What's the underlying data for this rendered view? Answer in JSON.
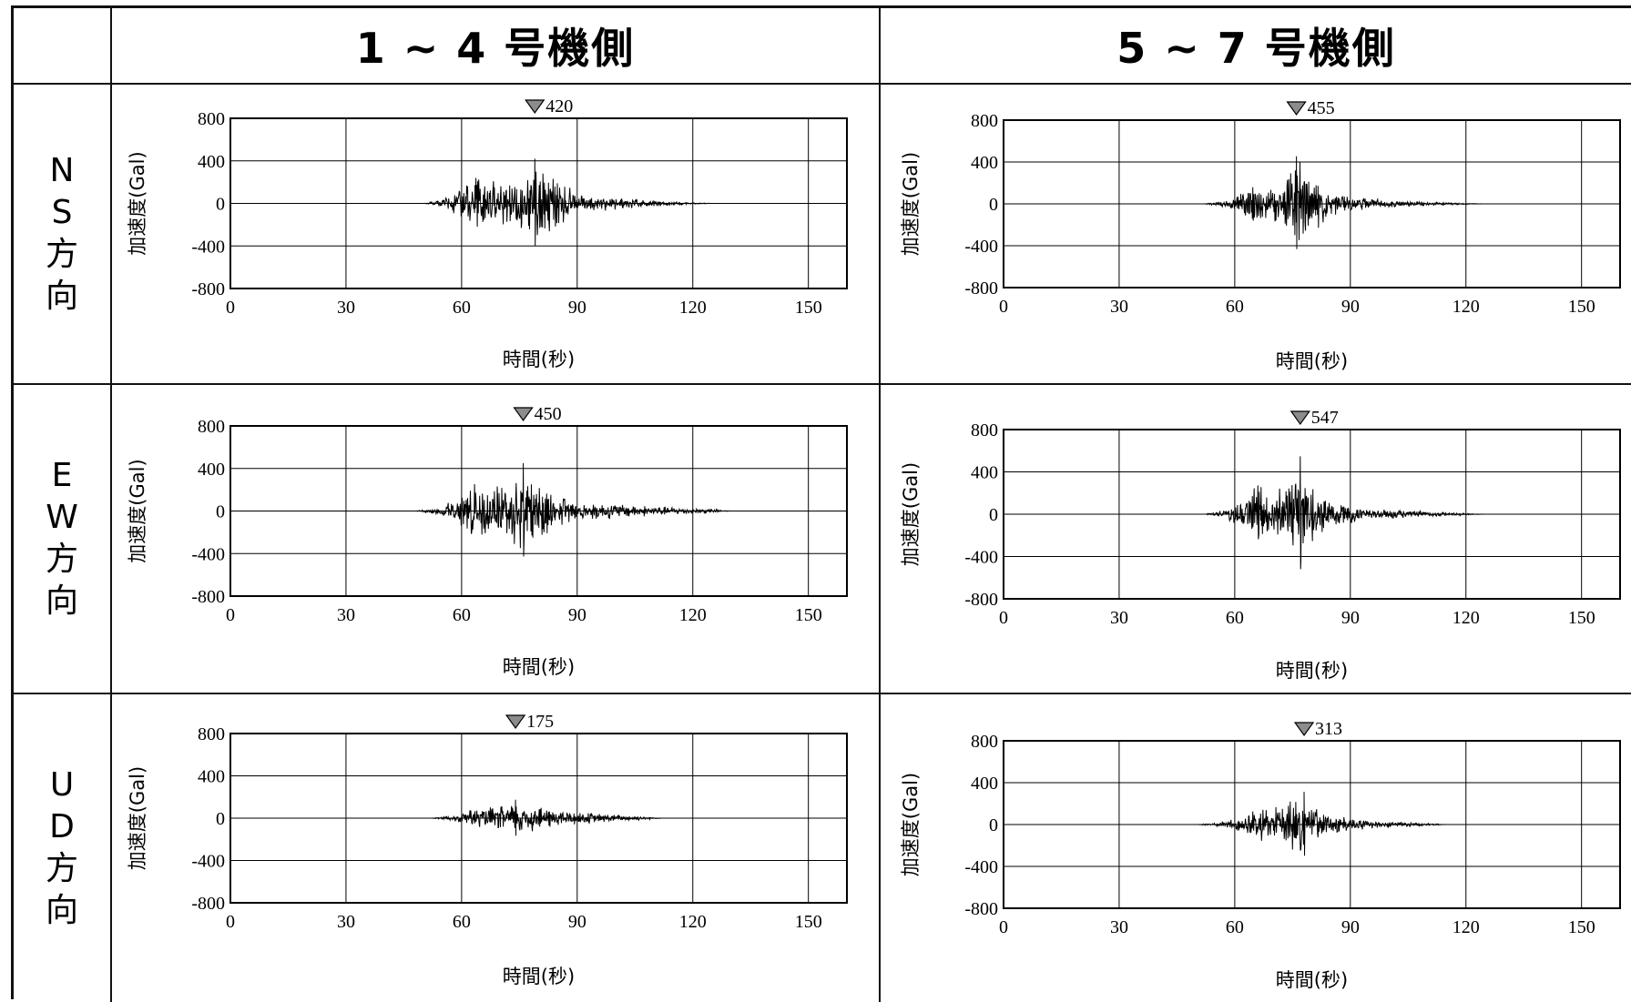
{
  "header": {
    "columns": [
      "1 ~ 4 号機側",
      "5 ~ 7 号機側"
    ]
  },
  "rows": [
    {
      "label_chars": [
        "N",
        "S",
        "方",
        "向"
      ]
    },
    {
      "label_chars": [
        "E",
        "W",
        "方",
        "向"
      ]
    },
    {
      "label_chars": [
        "U",
        "D",
        "方",
        "向"
      ]
    }
  ],
  "colors": {
    "trace": "#000000",
    "grid": "#000000",
    "marker": "#8c8c8c"
  },
  "chart_data": [
    {
      "type": "line",
      "row": "NS",
      "column": "1 ~ 4 号機側",
      "xlabel": "時間(秒)",
      "ylabel": "加速度(Gal)",
      "xlim": [
        0,
        160
      ],
      "ylim": [
        -800,
        800
      ],
      "xticks": [
        0,
        30,
        60,
        90,
        120,
        150
      ],
      "yticks": [
        800,
        400,
        0,
        -400,
        -800
      ],
      "peak": {
        "value": 420,
        "time": 79
      },
      "envelope": [
        [
          50,
          0
        ],
        [
          55,
          40
        ],
        [
          60,
          150
        ],
        [
          65,
          280
        ],
        [
          70,
          240
        ],
        [
          75,
          280
        ],
        [
          78,
          320
        ],
        [
          80,
          420
        ],
        [
          85,
          250
        ],
        [
          90,
          120
        ],
        [
          100,
          60
        ],
        [
          110,
          30
        ],
        [
          125,
          0
        ]
      ]
    },
    {
      "type": "line",
      "row": "NS",
      "column": "5 ~ 7 号機側",
      "xlabel": "時間(秒)",
      "ylabel": "加速度(Gal)",
      "xlim": [
        0,
        160
      ],
      "ylim": [
        -800,
        800
      ],
      "xticks": [
        0,
        30,
        60,
        90,
        120,
        150
      ],
      "yticks": [
        800,
        400,
        0,
        -400,
        -800
      ],
      "peak": {
        "value": 455,
        "time": 76
      },
      "envelope": [
        [
          52,
          0
        ],
        [
          58,
          40
        ],
        [
          62,
          150
        ],
        [
          65,
          250
        ],
        [
          68,
          170
        ],
        [
          72,
          200
        ],
        [
          76,
          455
        ],
        [
          80,
          300
        ],
        [
          85,
          150
        ],
        [
          90,
          80
        ],
        [
          100,
          40
        ],
        [
          110,
          20
        ],
        [
          125,
          0
        ]
      ]
    },
    {
      "type": "line",
      "row": "EW",
      "column": "1 ~ 4 号機側",
      "xlabel": "時間(秒)",
      "ylabel": "加速度(Gal)",
      "xlim": [
        0,
        160
      ],
      "ylim": [
        -800,
        800
      ],
      "xticks": [
        0,
        30,
        60,
        90,
        120,
        150
      ],
      "yticks": [
        800,
        400,
        0,
        -400,
        -800
      ],
      "peak": {
        "value": 450,
        "time": 76
      },
      "envelope": [
        [
          48,
          0
        ],
        [
          55,
          50
        ],
        [
          60,
          180
        ],
        [
          63,
          280
        ],
        [
          68,
          230
        ],
        [
          72,
          340
        ],
        [
          76,
          450
        ],
        [
          80,
          300
        ],
        [
          85,
          150
        ],
        [
          95,
          90
        ],
        [
          110,
          50
        ],
        [
          125,
          20
        ],
        [
          130,
          0
        ]
      ]
    },
    {
      "type": "line",
      "row": "EW",
      "column": "5 ~ 7 号機側",
      "xlabel": "時間(秒)",
      "ylabel": "加速度(Gal)",
      "xlim": [
        0,
        160
      ],
      "ylim": [
        -800,
        800
      ],
      "xticks": [
        0,
        30,
        60,
        90,
        120,
        150
      ],
      "yticks": [
        800,
        400,
        0,
        -400,
        -800
      ],
      "peak": {
        "value": 547,
        "time": 77
      },
      "envelope": [
        [
          52,
          0
        ],
        [
          58,
          50
        ],
        [
          63,
          200
        ],
        [
          66,
          420
        ],
        [
          69,
          160
        ],
        [
          73,
          300
        ],
        [
          77,
          547
        ],
        [
          80,
          300
        ],
        [
          85,
          120
        ],
        [
          95,
          60
        ],
        [
          110,
          30
        ],
        [
          125,
          0
        ]
      ]
    },
    {
      "type": "line",
      "row": "UD",
      "column": "1 ~ 4 号機側",
      "xlabel": "時間(秒)",
      "ylabel": "加速度(Gal)",
      "xlim": [
        0,
        160
      ],
      "ylim": [
        -800,
        800
      ],
      "xticks": [
        0,
        30,
        60,
        90,
        120,
        150
      ],
      "yticks": [
        800,
        400,
        0,
        -400,
        -800
      ],
      "peak": {
        "value": 175,
        "time": 74
      },
      "envelope": [
        [
          52,
          0
        ],
        [
          58,
          30
        ],
        [
          62,
          90
        ],
        [
          67,
          110
        ],
        [
          72,
          140
        ],
        [
          75,
          175
        ],
        [
          80,
          130
        ],
        [
          85,
          90
        ],
        [
          95,
          50
        ],
        [
          105,
          25
        ],
        [
          112,
          0
        ]
      ]
    },
    {
      "type": "line",
      "row": "UD",
      "column": "5 ~ 7 号機側",
      "xlabel": "時間(秒)",
      "ylabel": "加速度(Gal)",
      "xlim": [
        0,
        160
      ],
      "ylim": [
        -800,
        800
      ],
      "xticks": [
        0,
        30,
        60,
        90,
        120,
        150
      ],
      "yticks": [
        800,
        400,
        0,
        -400,
        -800
      ],
      "peak": {
        "value": 313,
        "time": 78
      },
      "envelope": [
        [
          50,
          0
        ],
        [
          58,
          30
        ],
        [
          63,
          120
        ],
        [
          67,
          180
        ],
        [
          72,
          200
        ],
        [
          77,
          313
        ],
        [
          80,
          200
        ],
        [
          85,
          100
        ],
        [
          95,
          40
        ],
        [
          110,
          15
        ],
        [
          115,
          0
        ]
      ]
    }
  ]
}
